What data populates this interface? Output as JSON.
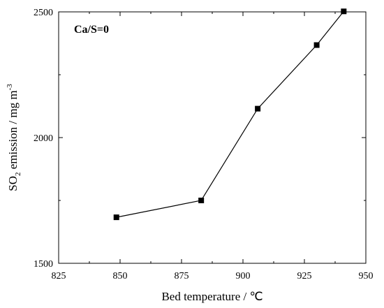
{
  "chart_data": {
    "type": "line",
    "title": "",
    "xlabel": "Bed temperature / ℃",
    "ylabel": {
      "prefix": "SO",
      "sub": "2",
      "middle": " emission / mg m",
      "sup": "-3"
    },
    "annotation": "Ca/S=0",
    "xlim": [
      825,
      950
    ],
    "ylim": [
      1500,
      2500
    ],
    "xticks": [
      "825",
      "850",
      "875",
      "900",
      "925",
      "950"
    ],
    "yticks": [
      "1500",
      "2000",
      "2500"
    ],
    "grid": false,
    "legend": "none",
    "marker": "square",
    "color": "#000000",
    "series": [
      {
        "x": [
          848.5,
          883,
          906,
          930,
          941
        ],
        "y": [
          1683,
          1750,
          2115,
          2368,
          2502
        ]
      }
    ]
  }
}
